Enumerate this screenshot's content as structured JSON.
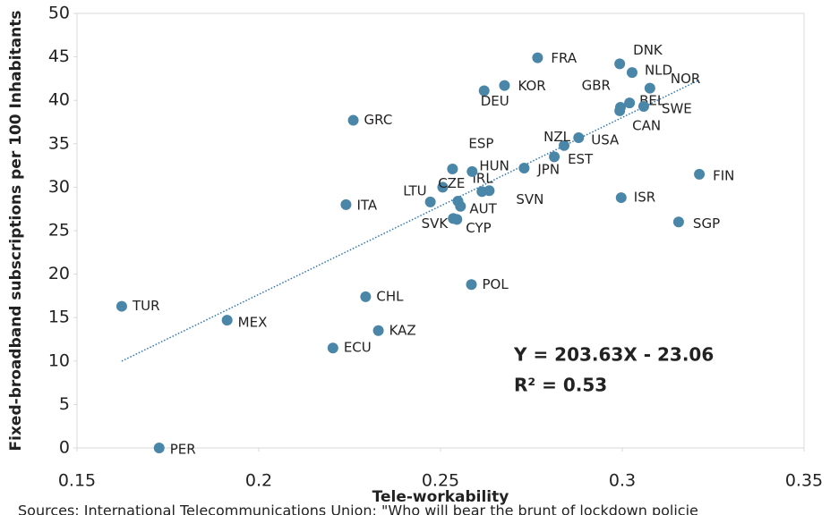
{
  "chart_data": {
    "type": "scatter",
    "x_label": "Tele-workability",
    "y_label": "Fixed-broadband subscriptions per 100 Inhabitants",
    "footer": "Sources: International Telecommunications Union; \"Who will bear the brunt of lockdown policie",
    "color": "#4a86a8",
    "labels": [
      "PER",
      "TUR",
      "MEX",
      "ECU",
      "KAZ",
      "CHL",
      "ITA",
      "GRC",
      "POL",
      "LTU",
      "SVK",
      "CYP",
      "AUT",
      "CZE",
      "IRL",
      "HUN",
      "ESP",
      "SVN",
      null,
      "JPN",
      "EST",
      "NZL",
      "USA",
      "DEU",
      "KOR",
      "FRA",
      "DNK",
      "NLD",
      "NOR",
      "GBR",
      "BEL",
      "SWE",
      "CAN",
      "ISR",
      "FIN",
      "SGP"
    ],
    "x": [
      0.1726,
      0.1623,
      0.1913,
      0.2204,
      0.2329,
      0.2294,
      0.224,
      0.226,
      0.2585,
      0.2472,
      0.2535,
      0.2545,
      0.2555,
      0.2506,
      0.2548,
      0.2587,
      0.2533,
      0.2634,
      0.2614,
      0.273,
      0.2813,
      0.284,
      0.288,
      0.262,
      0.2676,
      0.2767,
      0.2993,
      0.3027,
      0.3076,
      0.2995,
      0.302,
      0.3059,
      0.2993,
      0.2997,
      0.3212,
      0.3155
    ],
    "y": [
      0,
      16.3,
      14.7,
      11.5,
      13.5,
      17.4,
      28.0,
      37.7,
      18.8,
      28.3,
      26.4,
      26.3,
      27.8,
      30.0,
      28.4,
      31.8,
      32.1,
      29.6,
      29.5,
      32.2,
      33.5,
      34.8,
      35.7,
      41.1,
      41.7,
      44.9,
      44.2,
      43.2,
      41.4,
      39.2,
      39.7,
      39.3,
      38.8,
      28.8,
      31.5,
      26.0
    ],
    "trendline": {
      "slope": 203.63,
      "intercept": -23.06,
      "color": "#2e75b6"
    },
    "equation": "Y = 203.63X - 23.06",
    "r_squared": "R² = 0.53",
    "annotation_color": "#ff0000",
    "xlim": [
      0.15,
      0.35
    ],
    "xticks": [
      0.15,
      0.2,
      0.25,
      0.3,
      0.35
    ],
    "ylim": [
      0,
      50
    ],
    "yticks": [
      0,
      5,
      10,
      15,
      20,
      25,
      30,
      35,
      40,
      45,
      50
    ]
  }
}
